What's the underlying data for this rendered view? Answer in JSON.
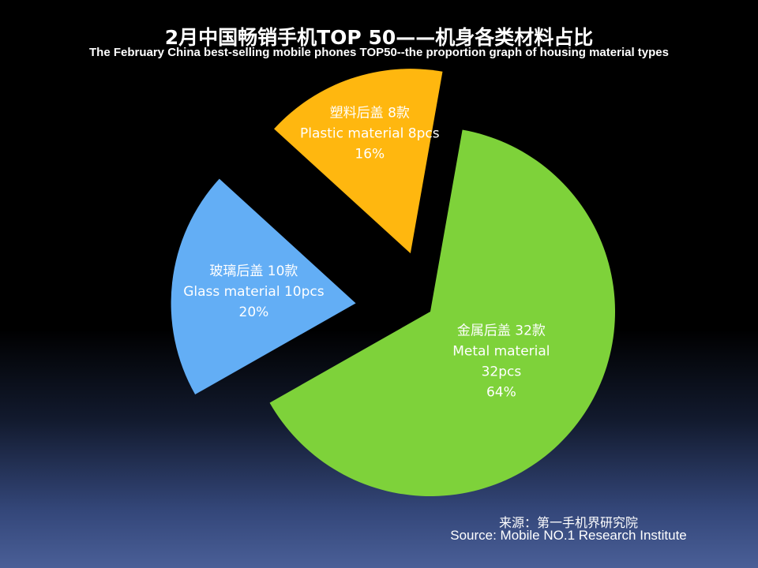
{
  "title": "2月中国畅销手机TOP 50——机身各类材料占比",
  "subtitle": "The February China best-selling mobile phones TOP50--the proportion graph of housing material types",
  "source_cn": "来源：第一手机界研究院",
  "source_en": "Source: Mobile NO.1 Research Institute",
  "chart_data": {
    "type": "pie",
    "title": "2月中国畅销手机TOP 50——机身各类材料占比",
    "subtitle": "The February China best-selling mobile phones TOP50--the proportion graph of housing material types",
    "exploded": true,
    "slices": [
      {
        "cn": "金属后盖 32款",
        "lines": [
          "Metal material",
          "32pcs"
        ],
        "pct": "64%",
        "value": 32,
        "percent": 64,
        "color": "#7ed23a"
      },
      {
        "cn": "玻璃后盖 10款",
        "lines": [
          "Glass material 10pcs"
        ],
        "pct": "20%",
        "value": 10,
        "percent": 20,
        "color": "#63aef5"
      },
      {
        "cn": "塑料后盖 8款",
        "lines": [
          "Plastic material 8pcs"
        ],
        "pct": "16%",
        "value": 8,
        "percent": 16,
        "color": "#ffb70f"
      }
    ],
    "text_color": "#ffffff"
  }
}
